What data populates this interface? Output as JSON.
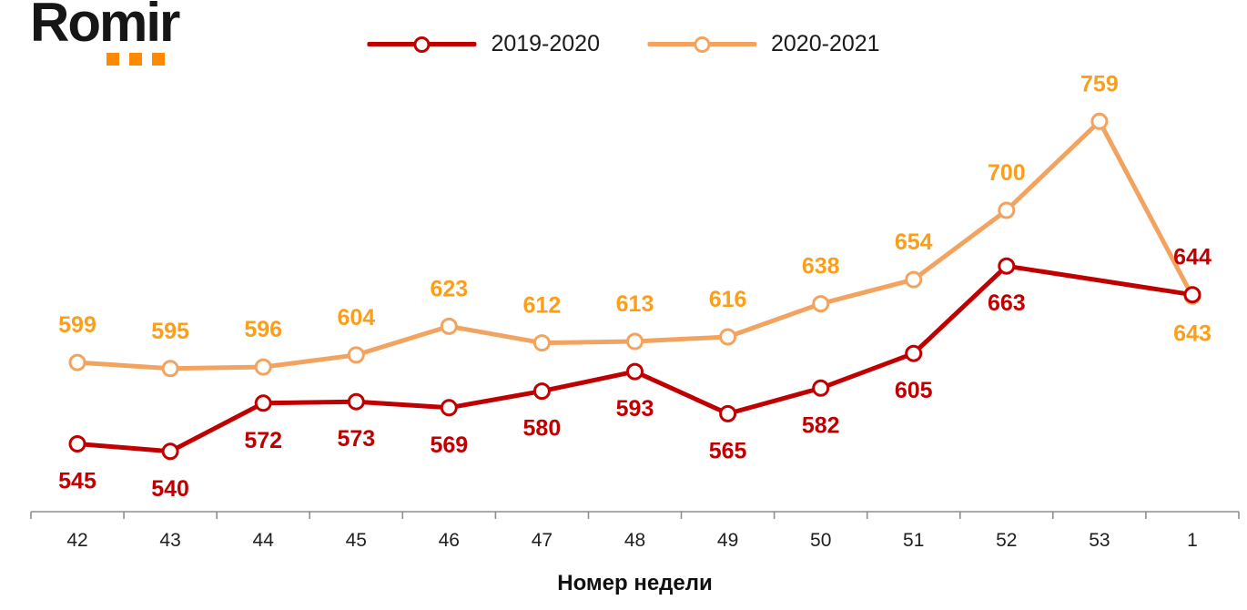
{
  "logo": {
    "text": "Romir"
  },
  "colors": {
    "red_line": "#C00000",
    "red_label": "#C00000",
    "orange_line": "#F3A360",
    "orange_label": "#FA9F1C",
    "axis": "#8F8F8F",
    "logo_orange": "#FF8A00",
    "text": "#1A1A1A"
  },
  "chart_data": {
    "type": "line",
    "title": "",
    "xlabel": "Номер недели",
    "ylabel": "",
    "ylim": [
      500,
      790
    ],
    "grid": false,
    "legend_position": "top-center",
    "categories": [
      "42",
      "43",
      "44",
      "45",
      "46",
      "47",
      "48",
      "49",
      "50",
      "51",
      "52",
      "53",
      "1"
    ],
    "series": [
      {
        "name": "2019-2020",
        "line_color": "#C00000",
        "label_color": "#C00000",
        "points": [
          {
            "week": "42",
            "value": 545,
            "label_pos": "below"
          },
          {
            "week": "43",
            "value": 540,
            "label_pos": "below"
          },
          {
            "week": "44",
            "value": 572,
            "label_pos": "below"
          },
          {
            "week": "45",
            "value": 573,
            "label_pos": "below"
          },
          {
            "week": "46",
            "value": 569,
            "label_pos": "below"
          },
          {
            "week": "47",
            "value": 580,
            "label_pos": "below"
          },
          {
            "week": "48",
            "value": 593,
            "label_pos": "below"
          },
          {
            "week": "49",
            "value": 565,
            "label_pos": "below"
          },
          {
            "week": "50",
            "value": 582,
            "label_pos": "below"
          },
          {
            "week": "51",
            "value": 605,
            "label_pos": "below"
          },
          {
            "week": "52",
            "value": 663,
            "label_pos": "below"
          },
          {
            "week": "1",
            "value": 644,
            "label_pos": "above"
          }
        ]
      },
      {
        "name": "2020-2021",
        "line_color": "#F3A360",
        "label_color": "#FA9F1C",
        "points": [
          {
            "week": "42",
            "value": 599,
            "label_pos": "above"
          },
          {
            "week": "43",
            "value": 595,
            "label_pos": "above"
          },
          {
            "week": "44",
            "value": 596,
            "label_pos": "above"
          },
          {
            "week": "45",
            "value": 604,
            "label_pos": "above"
          },
          {
            "week": "46",
            "value": 623,
            "label_pos": "above"
          },
          {
            "week": "47",
            "value": 612,
            "label_pos": "above"
          },
          {
            "week": "48",
            "value": 613,
            "label_pos": "above"
          },
          {
            "week": "49",
            "value": 616,
            "label_pos": "above"
          },
          {
            "week": "50",
            "value": 638,
            "label_pos": "above"
          },
          {
            "week": "51",
            "value": 654,
            "label_pos": "above"
          },
          {
            "week": "52",
            "value": 700,
            "label_pos": "above"
          },
          {
            "week": "53",
            "value": 759,
            "label_pos": "above"
          },
          {
            "week": "1",
            "value": 643,
            "label_pos": "below"
          }
        ]
      }
    ]
  }
}
